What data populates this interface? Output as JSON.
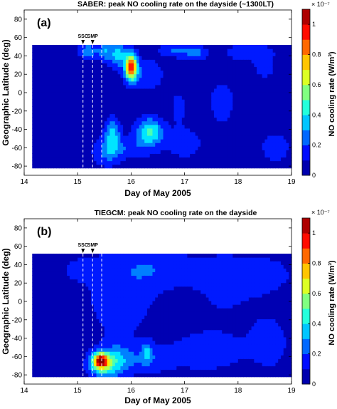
{
  "figure": {
    "panels": [
      {
        "id": "a",
        "label": "(a)",
        "title": "SABER: peak NO cooling rate on the dayside (~1300LT)",
        "xlabel": "Day of May 2005",
        "ylabel": "Geographic Latitude (deg)",
        "markers": [
          "SSC",
          "SMP"
        ],
        "colorbar_label": "NO cooling rate (W/m³)",
        "colorbar_exponent": "× 10⁻⁷"
      },
      {
        "id": "b",
        "label": "(b)",
        "title": "TIEGCM: peak NO cooling rate on the dayside",
        "xlabel": "Day of May 2005",
        "ylabel": "Geographic Latitude (deg)",
        "markers": [
          "SSC",
          "SMP"
        ],
        "colorbar_label": "NO cooling rate (W/m³)",
        "colorbar_exponent": "× 10⁻⁷"
      }
    ]
  },
  "chart_data": [
    {
      "type": "heatmap",
      "title": "SABER: peak NO cooling rate on the dayside (~1300LT)",
      "xlabel": "Day of May 2005",
      "ylabel": "Geographic Latitude (deg)",
      "xlim": [
        14,
        19
      ],
      "ylim": [
        -90,
        90
      ],
      "xticks": [
        14,
        15,
        16,
        17,
        18,
        19
      ],
      "yticks": [
        -80,
        -60,
        -40,
        -20,
        0,
        20,
        40,
        60,
        80
      ],
      "data_extent": {
        "x": [
          14.15,
          19.0
        ],
        "y": [
          -82,
          52
        ]
      },
      "colorbar": {
        "min": 0,
        "max": 1.1,
        "ticks": [
          0,
          0.2,
          0.4,
          0.6,
          0.8,
          1.0
        ],
        "label": "NO cooling rate (W/m³)",
        "exponent": "× 10⁻⁷",
        "colormap": "jet"
      },
      "vertical_lines": [
        {
          "x": 15.1
        },
        {
          "x": 15.28
        },
        {
          "x": 15.45
        }
      ],
      "markers": [
        {
          "label": "SSC",
          "x": 15.1
        },
        {
          "label": "SMP",
          "x": 15.28
        }
      ],
      "background_value": 0.05,
      "features": [
        {
          "x": 16.0,
          "y": 28,
          "sx": 0.08,
          "sy": 10,
          "amp": 0.88
        },
        {
          "x": 15.75,
          "y": 42,
          "sx": 0.12,
          "sy": 10,
          "amp": 0.32
        },
        {
          "x": 15.2,
          "y": 46,
          "sx": 0.12,
          "sy": 5,
          "amp": 0.28
        },
        {
          "x": 15.5,
          "y": 45,
          "sx": 0.08,
          "sy": 6,
          "amp": 0.25
        },
        {
          "x": 16.3,
          "y": 20,
          "sx": 0.2,
          "sy": 12,
          "amp": 0.16
        },
        {
          "x": 16.8,
          "y": 46,
          "sx": 0.18,
          "sy": 5,
          "amp": 0.18
        },
        {
          "x": 17.2,
          "y": 44,
          "sx": 0.15,
          "sy": 5,
          "amp": 0.22
        },
        {
          "x": 18.2,
          "y": 44,
          "sx": 0.3,
          "sy": 6,
          "amp": 0.16
        },
        {
          "x": 18.5,
          "y": 28,
          "sx": 0.15,
          "sy": 10,
          "amp": 0.1
        },
        {
          "x": 16.35,
          "y": -42,
          "sx": 0.17,
          "sy": 10,
          "amp": 0.42
        },
        {
          "x": 15.65,
          "y": -45,
          "sx": 0.1,
          "sy": 12,
          "amp": 0.32
        },
        {
          "x": 15.55,
          "y": -65,
          "sx": 0.18,
          "sy": 10,
          "amp": 0.18
        },
        {
          "x": 16.0,
          "y": -60,
          "sx": 0.3,
          "sy": 8,
          "amp": 0.14
        },
        {
          "x": 17.0,
          "y": -55,
          "sx": 0.25,
          "sy": 12,
          "amp": 0.12
        },
        {
          "x": 16.9,
          "y": -15,
          "sx": 0.12,
          "sy": 15,
          "amp": 0.09
        },
        {
          "x": 17.7,
          "y": -10,
          "sx": 0.2,
          "sy": 20,
          "amp": 0.1
        },
        {
          "x": 18.7,
          "y": -60,
          "sx": 0.2,
          "sy": 12,
          "amp": 0.12
        }
      ]
    },
    {
      "type": "heatmap",
      "title": "TIEGCM: peak NO cooling rate on the dayside",
      "xlabel": "Day of May 2005",
      "ylabel": "Geographic Latitude (deg)",
      "xlim": [
        14,
        19
      ],
      "ylim": [
        -90,
        90
      ],
      "xticks": [
        14,
        15,
        16,
        17,
        18,
        19
      ],
      "yticks": [
        -80,
        -60,
        -40,
        -20,
        0,
        20,
        40,
        60,
        80
      ],
      "data_extent": {
        "x": [
          14.15,
          19.0
        ],
        "y": [
          -82,
          52
        ]
      },
      "colorbar": {
        "min": 0,
        "max": 1.1,
        "ticks": [
          0,
          0.2,
          0.4,
          0.6,
          0.8,
          1.0
        ],
        "label": "NO cooling rate (W/m³)",
        "exponent": "× 10⁻⁷",
        "colormap": "jet"
      },
      "vertical_lines": [
        {
          "x": 15.1
        },
        {
          "x": 15.28
        },
        {
          "x": 15.45
        }
      ],
      "markers": [
        {
          "label": "SSC",
          "x": 15.1
        },
        {
          "label": "SMP",
          "x": 15.28
        }
      ],
      "background_value": 0.05,
      "features": [
        {
          "x": 15.43,
          "y": -64,
          "sx": 0.1,
          "sy": 6,
          "amp": 0.82
        },
        {
          "x": 15.5,
          "y": -70,
          "sx": 0.2,
          "sy": 10,
          "amp": 0.32
        },
        {
          "x": 15.75,
          "y": -60,
          "sx": 0.2,
          "sy": 12,
          "amp": 0.17
        },
        {
          "x": 16.3,
          "y": -55,
          "sx": 0.08,
          "sy": 8,
          "amp": 0.22
        },
        {
          "x": 16.2,
          "y": -65,
          "sx": 0.4,
          "sy": 10,
          "amp": 0.12
        },
        {
          "x": 17.4,
          "y": -55,
          "sx": 0.5,
          "sy": 15,
          "amp": 0.12
        },
        {
          "x": 18.6,
          "y": -45,
          "sx": 0.3,
          "sy": 25,
          "amp": 0.09
        },
        {
          "x": 15.8,
          "y": 10,
          "sx": 0.5,
          "sy": 40,
          "amp": 0.11
        },
        {
          "x": 16.3,
          "y": 35,
          "sx": 0.4,
          "sy": 15,
          "amp": 0.1
        },
        {
          "x": 17.3,
          "y": 35,
          "sx": 0.6,
          "sy": 12,
          "amp": 0.1
        },
        {
          "x": 18.4,
          "y": 30,
          "sx": 0.5,
          "sy": 15,
          "amp": 0.1
        },
        {
          "x": 15.0,
          "y": 35,
          "sx": 0.25,
          "sy": 10,
          "amp": 0.07
        },
        {
          "x": 17.7,
          "y": 0,
          "sx": 0.5,
          "sy": 25,
          "amp": 0.06
        }
      ]
    }
  ]
}
